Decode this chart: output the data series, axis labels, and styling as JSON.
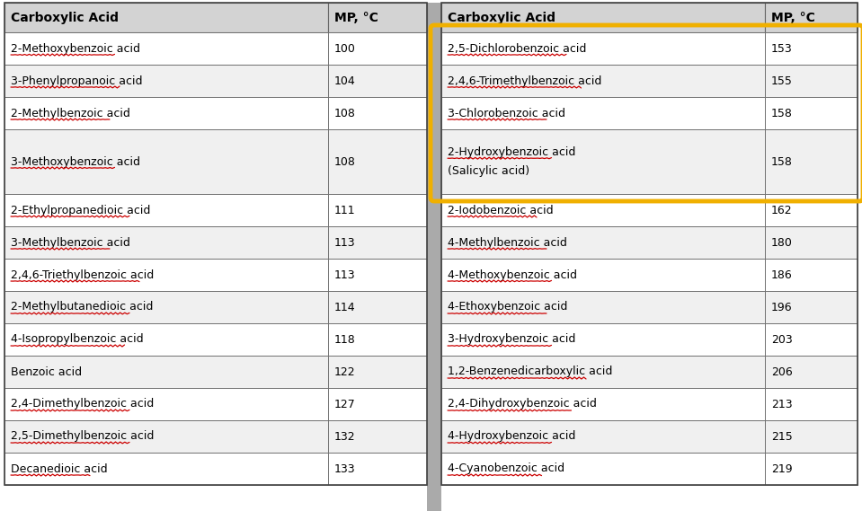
{
  "left_col_header": [
    "Carboxylic Acid",
    "MP, °C"
  ],
  "right_col_header": [
    "Carboxylic Acid",
    "MP, °C"
  ],
  "left_data": [
    [
      "2-Methoxybenzoic acid",
      "100",
      true
    ],
    [
      "3-Phenylpropanoic acid",
      "104",
      true
    ],
    [
      "2-Methylbenzoic acid",
      "108",
      true
    ],
    [
      "3-Methoxybenzoic acid",
      "108",
      true
    ],
    [
      "2-Ethylpropanedioic acid",
      "111",
      true
    ],
    [
      "3-Methylbenzoic acid",
      "113",
      true
    ],
    [
      "2,4,6-Triethylbenzoic acid",
      "113",
      true
    ],
    [
      "2-Methylbutanedioic acid",
      "114",
      true
    ],
    [
      "4-Isopropylbenzoic acid",
      "118",
      true
    ],
    [
      "Benzoic acid",
      "122",
      false
    ],
    [
      "2,4-Dimethylbenzoic acid",
      "127",
      true
    ],
    [
      "2,5-Dimethylbenzoic acid",
      "132",
      true
    ],
    [
      "Decanedioic acid",
      "133",
      true
    ]
  ],
  "right_data": [
    [
      "2,5-Dichlorobenzoic acid",
      "153",
      true
    ],
    [
      "2,4,6-Trimethylbenzoic acid",
      "155",
      true
    ],
    [
      "3-Chlorobenzoic acid",
      "158",
      true
    ],
    [
      "2-Hydroxybenzoic acid",
      "158",
      true
    ],
    [
      "(Salicylic acid)",
      "",
      false
    ],
    [
      "2-Iodobenzoic acid",
      "162",
      true
    ],
    [
      "4-Methylbenzoic acid",
      "180",
      true
    ],
    [
      "4-Methoxybenzoic acid",
      "186",
      true
    ],
    [
      "4-Ethoxybenzoic acid",
      "196",
      true
    ],
    [
      "3-Hydroxybenzoic acid",
      "203",
      true
    ],
    [
      "1,2-Benzenedicarboxylic acid",
      "206",
      true
    ],
    [
      "2,4-Dihydroxybenzoic acid",
      "213",
      true
    ],
    [
      "4-Hydroxybenzoic acid",
      "215",
      true
    ],
    [
      "4-Cyanobenzoic acid",
      "219",
      true
    ]
  ],
  "header_bg": "#d3d3d3",
  "highlight_border": "#f0b000",
  "font_size": 9.0,
  "header_font_size": 10.0
}
